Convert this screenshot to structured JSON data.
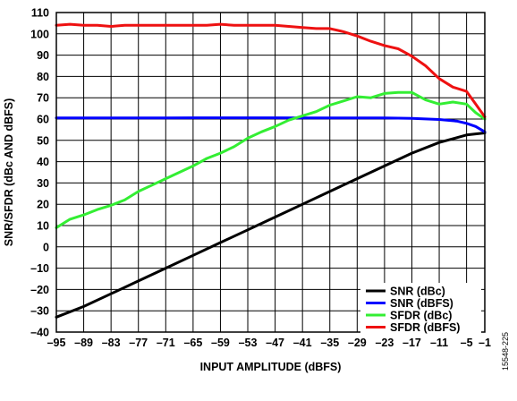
{
  "chart_data": {
    "type": "line",
    "title": "",
    "xlabel": "INPUT AMPLITUDE (dBFS)",
    "ylabel": "SNR/SFDR (dBc AND dBFS)",
    "xlim": [
      -95,
      -1
    ],
    "ylim": [
      -40,
      110
    ],
    "xticks": [
      -95,
      -89,
      -83,
      -77,
      -71,
      -65,
      -59,
      -53,
      -47,
      -41,
      -35,
      -29,
      -23,
      -17,
      -11,
      -5,
      -1
    ],
    "xtick_labels": [
      "–95",
      "–89",
      "–83",
      "–77",
      "–71",
      "–65",
      "–59",
      "–53",
      "–47",
      "–41",
      "–35",
      "–29",
      "–23",
      "–17",
      "–11",
      "–5",
      "–1"
    ],
    "yticks": [
      -40,
      -30,
      -20,
      -10,
      0,
      10,
      20,
      30,
      40,
      50,
      60,
      70,
      80,
      90,
      100,
      110
    ],
    "ytick_labels": [
      "–40",
      "–30",
      "–20",
      "–10",
      "0",
      "10",
      "20",
      "30",
      "40",
      "50",
      "60",
      "70",
      "80",
      "90",
      "100",
      "110"
    ],
    "grid": true,
    "legend_position": "bottom-right",
    "series": [
      {
        "name": "SNR (dBc)",
        "color": "#000000",
        "x": [
          -95,
          -89,
          -83,
          -77,
          -71,
          -65,
          -59,
          -53,
          -47,
          -41,
          -35,
          -29,
          -23,
          -17,
          -11,
          -5,
          -1
        ],
        "y": [
          -33,
          -28,
          -22,
          -16,
          -10,
          -4,
          2,
          8,
          14,
          20,
          26,
          32,
          38,
          44,
          49,
          52.5,
          53.5
        ]
      },
      {
        "name": "SNR (dBFS)",
        "color": "#0000ff",
        "x": [
          -95,
          -89,
          -83,
          -77,
          -71,
          -65,
          -59,
          -53,
          -47,
          -41,
          -35,
          -29,
          -23,
          -17,
          -11,
          -7,
          -5,
          -3,
          -1
        ],
        "y": [
          60.5,
          60.5,
          60.5,
          60.5,
          60.5,
          60.6,
          60.6,
          60.6,
          60.6,
          60.5,
          60.5,
          60.5,
          60.5,
          60.3,
          59.8,
          59,
          58,
          56.5,
          54
        ]
      },
      {
        "name": "SFDR (dBc)",
        "color": "#33ee33",
        "x": [
          -95,
          -92,
          -89,
          -86,
          -83,
          -80,
          -77,
          -74,
          -71,
          -68,
          -65,
          -62,
          -59,
          -56,
          -53,
          -50,
          -47,
          -44,
          -41,
          -38,
          -35,
          -32,
          -29,
          -26,
          -23,
          -20,
          -17,
          -14,
          -11,
          -8,
          -5,
          -3,
          -1
        ],
        "y": [
          9,
          13,
          15,
          17.5,
          19.5,
          22,
          26,
          29,
          32,
          35,
          38,
          41.5,
          44,
          47,
          51,
          54,
          56.5,
          59.5,
          61.5,
          63.5,
          66.5,
          68.5,
          70.5,
          70,
          72,
          72.5,
          72.5,
          69,
          67,
          68,
          67,
          63,
          60
        ]
      },
      {
        "name": "SFDR (dBFS)",
        "color": "#ee1111",
        "x": [
          -95,
          -92,
          -89,
          -86,
          -83,
          -80,
          -77,
          -74,
          -71,
          -68,
          -65,
          -62,
          -59,
          -56,
          -53,
          -50,
          -47,
          -44,
          -41,
          -38,
          -35,
          -32,
          -29,
          -26,
          -23,
          -20,
          -17,
          -14,
          -11,
          -8,
          -5,
          -3,
          -1
        ],
        "y": [
          104,
          104.5,
          104,
          104,
          103.5,
          104,
          104,
          104,
          104,
          104,
          104,
          104,
          104.5,
          104,
          104,
          104,
          104,
          103.5,
          103,
          102.5,
          102.5,
          101,
          99,
          96.5,
          94.5,
          93,
          89.5,
          85,
          79,
          75,
          73,
          67,
          61
        ]
      }
    ]
  },
  "figure_id": "15548-225"
}
